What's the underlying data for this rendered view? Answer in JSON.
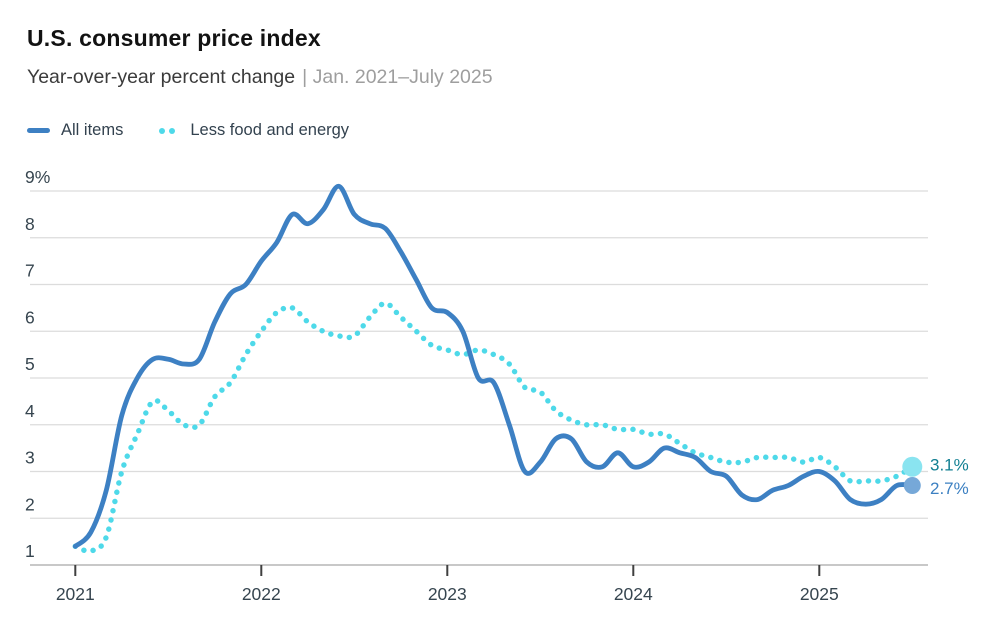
{
  "header": {
    "title": "U.S. consumer price index",
    "subtitle": "Year-over-year percent change",
    "subtitle_meta": "| Jan. 2021–July 2025"
  },
  "legend": {
    "items": [
      {
        "label": "All items",
        "swatch": "solid-dash",
        "color": "#3d80c3"
      },
      {
        "label": "Less food and energy",
        "swatch": "dotted",
        "color": "#4ed9e9"
      }
    ]
  },
  "chart_data": {
    "type": "line",
    "title": "U.S. consumer price index",
    "subtitle": "Year-over-year percent change",
    "date_range": "Jan. 2021–July 2025",
    "x_unit": "month, Jan 2021 through Jul 2025",
    "ylim": [
      1,
      9
    ],
    "grid": true,
    "legend_position": "top-left",
    "axis_colors": {
      "gridline": "#dcdcdc",
      "baseline": "#a6a6a6",
      "tick": "#3f3f3f",
      "label": "#36454f"
    },
    "y_ticks": [
      {
        "value": 9,
        "label": "9%"
      },
      {
        "value": 8,
        "label": "8"
      },
      {
        "value": 7,
        "label": "7"
      },
      {
        "value": 6,
        "label": "6"
      },
      {
        "value": 5,
        "label": "5"
      },
      {
        "value": 4,
        "label": "4"
      },
      {
        "value": 3,
        "label": "3"
      },
      {
        "value": 2,
        "label": "2"
      },
      {
        "value": 1,
        "label": "1"
      }
    ],
    "x_ticks": [
      {
        "month_index": 0,
        "label": "2021"
      },
      {
        "month_index": 12,
        "label": "2022"
      },
      {
        "month_index": 24,
        "label": "2023"
      },
      {
        "month_index": 36,
        "label": "2024"
      },
      {
        "month_index": 48,
        "label": "2025"
      }
    ],
    "series": [
      {
        "name": "All items",
        "style": "solid",
        "color": "#3d80c3",
        "end_dot_color": "#76a8d8",
        "end_label": "2.7%",
        "end_label_color": "#3c80c2",
        "values": [
          1.4,
          1.7,
          2.6,
          4.2,
          5.0,
          5.4,
          5.4,
          5.3,
          5.4,
          6.2,
          6.8,
          7.0,
          7.5,
          7.9,
          8.5,
          8.3,
          8.6,
          9.1,
          8.5,
          8.3,
          8.2,
          7.7,
          7.1,
          6.5,
          6.4,
          6.0,
          5.0,
          4.9,
          4.0,
          3.0,
          3.2,
          3.7,
          3.7,
          3.2,
          3.1,
          3.4,
          3.1,
          3.2,
          3.5,
          3.4,
          3.3,
          3.0,
          2.9,
          2.5,
          2.4,
          2.6,
          2.7,
          2.9,
          3.0,
          2.8,
          2.4,
          2.3,
          2.4,
          2.7,
          2.7
        ]
      },
      {
        "name": "Less food and energy",
        "style": "dotted",
        "color": "#4ed9e9",
        "end_dot_color": "#8ae4f0",
        "end_label": "3.1%",
        "end_label_color": "#117f92",
        "values": [
          1.4,
          1.3,
          1.6,
          3.0,
          3.8,
          4.5,
          4.3,
          4.0,
          4.0,
          4.6,
          4.9,
          5.5,
          6.0,
          6.4,
          6.5,
          6.2,
          6.0,
          5.9,
          5.9,
          6.3,
          6.6,
          6.3,
          6.0,
          5.7,
          5.6,
          5.5,
          5.6,
          5.5,
          5.3,
          4.8,
          4.7,
          4.3,
          4.1,
          4.0,
          4.0,
          3.9,
          3.9,
          3.8,
          3.8,
          3.6,
          3.4,
          3.3,
          3.2,
          3.2,
          3.3,
          3.3,
          3.3,
          3.2,
          3.3,
          3.1,
          2.8,
          2.8,
          2.8,
          2.9,
          3.1
        ]
      }
    ]
  }
}
